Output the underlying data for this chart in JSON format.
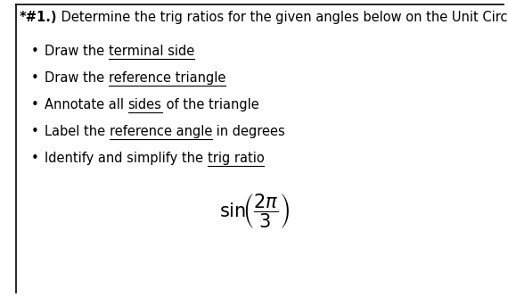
{
  "title_bold": "*#1.)",
  "title_rest": " Determine the trig ratios for the given angles below on the Unit Circle.",
  "bullets": [
    {
      "pre": "Draw the ",
      "underlined": "terminal side",
      "post": ""
    },
    {
      "pre": "Draw the ",
      "underlined": "reference triangle",
      "post": ""
    },
    {
      "pre": "Annotate all ",
      "underlined": "sides",
      "post": " of the triangle"
    },
    {
      "pre": "Label the ",
      "underlined": "reference angle",
      "post": " in degrees"
    },
    {
      "pre": "Identify and simplify the ",
      "underlined": "trig ratio",
      "post": ""
    }
  ],
  "bg_color": "#ffffff",
  "text_color": "#000000",
  "border_color": "#000000",
  "title_fontsize": 10.5,
  "bullet_fontsize": 10.5,
  "formula_fontsize": 13
}
